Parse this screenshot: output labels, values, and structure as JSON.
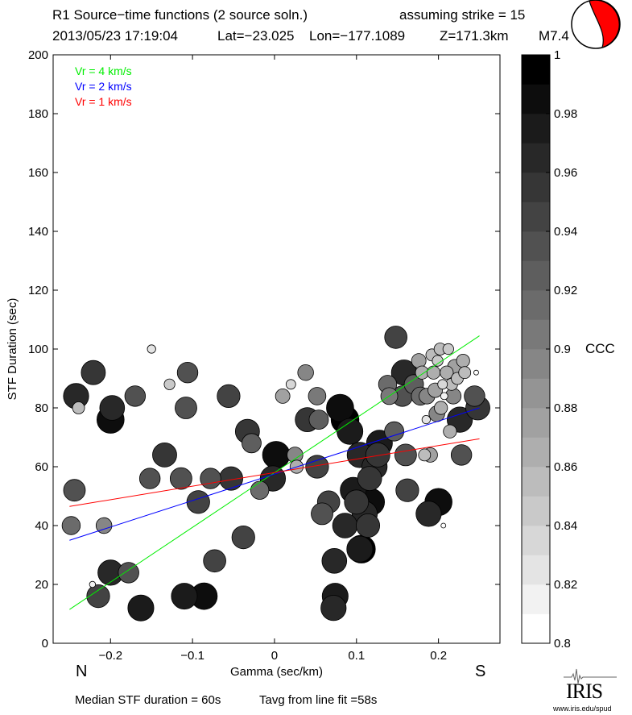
{
  "title": {
    "line1_left": "R1 Source−time functions (2 source soln.)",
    "line1_right": "assuming strike = 15",
    "line2_date": "2013/05/23 17:19:04",
    "line2_lat": "Lat=−23.025",
    "line2_lon": "Lon=−177.1089",
    "line2_depth": "Z=171.3km",
    "line2_mag": "M7.4"
  },
  "labels": {
    "north": "N",
    "south": "S",
    "colorbar_label": "CCC"
  },
  "footer": {
    "median": "Median STF duration = 60s",
    "tavg": "Tavg from line fit =58s"
  },
  "logo": {
    "name": "IRIS",
    "url": "www.iris.edu/spud"
  },
  "colors": {
    "vr4": "#00ee00",
    "vr2": "#0000ff",
    "vr1": "#ff0000",
    "beachball_fill": "#ff0000"
  },
  "chart_data": {
    "type": "scatter",
    "xlabel": "Gamma (sec/km)",
    "ylabel": "STF Duration (sec)",
    "xlim": [
      -0.27,
      0.275
    ],
    "ylim": [
      0,
      200
    ],
    "xticks": [
      -0.2,
      -0.1,
      0,
      0.1,
      0.2
    ],
    "xtick_labels": [
      "−0.2",
      "−0.1",
      "0",
      "0.1",
      "0.2"
    ],
    "yticks": [
      0,
      20,
      40,
      60,
      80,
      100,
      120,
      140,
      160,
      180,
      200
    ],
    "yticks_labels": [
      "0",
      "20",
      "40",
      "60",
      "80",
      "100",
      "120",
      "140",
      "160",
      "180",
      "200"
    ],
    "grid": false,
    "lines": [
      {
        "name": "Vr = 4 km/s",
        "color": "#00ee00",
        "x": [
          -0.25,
          0.25
        ],
        "y": [
          11.5,
          104.5
        ]
      },
      {
        "name": "Vr = 2 km/s",
        "color": "#0000ff",
        "x": [
          -0.25,
          0.25
        ],
        "y": [
          35,
          80
        ]
      },
      {
        "name": "Vr = 1 km/s",
        "color": "#ff0000",
        "x": [
          -0.25,
          0.25
        ],
        "y": [
          46.5,
          69.5
        ]
      }
    ],
    "colorbar": {
      "label": "CCC",
      "min": 0.8,
      "max": 1.0,
      "levels": 20,
      "ticks": [
        0.8,
        0.82,
        0.84,
        0.86,
        0.88,
        0.9,
        0.92,
        0.94,
        0.96,
        0.98,
        1.0
      ],
      "tick_labels": [
        "0.8",
        "0.82",
        "0.84",
        "0.86",
        "0.88",
        "0.9",
        "0.92",
        "0.94",
        "0.96",
        "0.98",
        "1"
      ]
    },
    "points": [
      {
        "x": -0.239,
        "y": 80,
        "ccc": 0.86
      },
      {
        "x": -0.242,
        "y": 84,
        "ccc": 0.97
      },
      {
        "x": -0.221,
        "y": 92,
        "ccc": 0.96
      },
      {
        "x": -0.2,
        "y": 76,
        "ccc": 0.985
      },
      {
        "x": -0.198,
        "y": 80,
        "ccc": 0.965
      },
      {
        "x": -0.17,
        "y": 84,
        "ccc": 0.93
      },
      {
        "x": -0.15,
        "y": 100,
        "ccc": 0.83
      },
      {
        "x": -0.128,
        "y": 88,
        "ccc": 0.85
      },
      {
        "x": -0.106,
        "y": 92,
        "ccc": 0.93
      },
      {
        "x": -0.108,
        "y": 80,
        "ccc": 0.94
      },
      {
        "x": -0.056,
        "y": 84,
        "ccc": 0.95
      },
      {
        "x": -0.244,
        "y": 52,
        "ccc": 0.94
      },
      {
        "x": -0.248,
        "y": 40,
        "ccc": 0.91
      },
      {
        "x": -0.208,
        "y": 40,
        "ccc": 0.89
      },
      {
        "x": -0.215,
        "y": 16,
        "ccc": 0.95
      },
      {
        "x": -0.2,
        "y": 24,
        "ccc": 0.97
      },
      {
        "x": -0.178,
        "y": 24,
        "ccc": 0.93
      },
      {
        "x": -0.222,
        "y": 20,
        "ccc": 0.81
      },
      {
        "x": -0.163,
        "y": 12,
        "ccc": 0.975
      },
      {
        "x": -0.152,
        "y": 56,
        "ccc": 0.93
      },
      {
        "x": -0.134,
        "y": 64,
        "ccc": 0.96
      },
      {
        "x": -0.114,
        "y": 56,
        "ccc": 0.94
      },
      {
        "x": -0.093,
        "y": 48,
        "ccc": 0.95
      },
      {
        "x": -0.078,
        "y": 56,
        "ccc": 0.93
      },
      {
        "x": -0.053,
        "y": 56,
        "ccc": 0.955
      },
      {
        "x": -0.033,
        "y": 72,
        "ccc": 0.96
      },
      {
        "x": -0.028,
        "y": 68,
        "ccc": 0.92
      },
      {
        "x": -0.038,
        "y": 36,
        "ccc": 0.95
      },
      {
        "x": -0.073,
        "y": 28,
        "ccc": 0.945
      },
      {
        "x": -0.11,
        "y": 16,
        "ccc": 0.975
      },
      {
        "x": -0.086,
        "y": 16,
        "ccc": 0.98
      },
      {
        "x": -0.018,
        "y": 52,
        "ccc": 0.91
      },
      {
        "x": -0.002,
        "y": 56,
        "ccc": 0.97
      },
      {
        "x": 0.002,
        "y": 64,
        "ccc": 0.985
      },
      {
        "x": 0.01,
        "y": 84,
        "ccc": 0.88
      },
      {
        "x": 0.02,
        "y": 88,
        "ccc": 0.84
      },
      {
        "x": 0.025,
        "y": 64,
        "ccc": 0.89
      },
      {
        "x": 0.027,
        "y": 60,
        "ccc": 0.87
      },
      {
        "x": 0.038,
        "y": 92,
        "ccc": 0.89
      },
      {
        "x": 0.04,
        "y": 76,
        "ccc": 0.96
      },
      {
        "x": 0.052,
        "y": 84,
        "ccc": 0.905
      },
      {
        "x": 0.054,
        "y": 76,
        "ccc": 0.92
      },
      {
        "x": 0.052,
        "y": 60,
        "ccc": 0.95
      },
      {
        "x": 0.058,
        "y": 44,
        "ccc": 0.94
      },
      {
        "x": 0.066,
        "y": 48,
        "ccc": 0.945
      },
      {
        "x": 0.073,
        "y": 28,
        "ccc": 0.965
      },
      {
        "x": 0.074,
        "y": 16,
        "ccc": 0.975
      },
      {
        "x": 0.072,
        "y": 12,
        "ccc": 0.97
      },
      {
        "x": 0.08,
        "y": 80,
        "ccc": 0.985
      },
      {
        "x": 0.086,
        "y": 76,
        "ccc": 0.99
      },
      {
        "x": 0.092,
        "y": 72,
        "ccc": 0.975
      },
      {
        "x": 0.086,
        "y": 40,
        "ccc": 0.965
      },
      {
        "x": 0.096,
        "y": 52,
        "ccc": 0.975
      },
      {
        "x": 0.1,
        "y": 48,
        "ccc": 0.96
      },
      {
        "x": 0.104,
        "y": 64,
        "ccc": 0.97
      },
      {
        "x": 0.104,
        "y": 32,
        "ccc": 0.975
      },
      {
        "x": 0.106,
        "y": 32,
        "ccc": 0.99
      },
      {
        "x": 0.11,
        "y": 44,
        "ccc": 0.97
      },
      {
        "x": 0.114,
        "y": 40,
        "ccc": 0.955
      },
      {
        "x": 0.118,
        "y": 48,
        "ccc": 0.98
      },
      {
        "x": 0.116,
        "y": 56,
        "ccc": 0.96
      },
      {
        "x": 0.122,
        "y": 60,
        "ccc": 0.97
      },
      {
        "x": 0.126,
        "y": 64,
        "ccc": 0.96
      },
      {
        "x": 0.128,
        "y": 68,
        "ccc": 0.975
      },
      {
        "x": 0.138,
        "y": 88,
        "ccc": 0.91
      },
      {
        "x": 0.148,
        "y": 104,
        "ccc": 0.945
      },
      {
        "x": 0.146,
        "y": 72,
        "ccc": 0.92
      },
      {
        "x": 0.14,
        "y": 84,
        "ccc": 0.9
      },
      {
        "x": 0.158,
        "y": 92,
        "ccc": 0.97
      },
      {
        "x": 0.156,
        "y": 84,
        "ccc": 0.93
      },
      {
        "x": 0.16,
        "y": 64,
        "ccc": 0.94
      },
      {
        "x": 0.162,
        "y": 52,
        "ccc": 0.95
      },
      {
        "x": 0.17,
        "y": 88,
        "ccc": 0.92
      },
      {
        "x": 0.176,
        "y": 96,
        "ccc": 0.88
      },
      {
        "x": 0.178,
        "y": 84,
        "ccc": 0.91
      },
      {
        "x": 0.18,
        "y": 92,
        "ccc": 0.87
      },
      {
        "x": 0.183,
        "y": 64,
        "ccc": 0.86
      },
      {
        "x": 0.185,
        "y": 76,
        "ccc": 0.83
      },
      {
        "x": 0.186,
        "y": 84,
        "ccc": 0.89
      },
      {
        "x": 0.188,
        "y": 44,
        "ccc": 0.97
      },
      {
        "x": 0.19,
        "y": 64,
        "ccc": 0.88
      },
      {
        "x": 0.192,
        "y": 98,
        "ccc": 0.86
      },
      {
        "x": 0.194,
        "y": 92,
        "ccc": 0.87
      },
      {
        "x": 0.196,
        "y": 86,
        "ccc": 0.88
      },
      {
        "x": 0.198,
        "y": 78,
        "ccc": 0.89
      },
      {
        "x": 0.199,
        "y": 96,
        "ccc": 0.85
      },
      {
        "x": 0.2,
        "y": 48,
        "ccc": 0.985
      },
      {
        "x": 0.202,
        "y": 100,
        "ccc": 0.86
      },
      {
        "x": 0.203,
        "y": 80,
        "ccc": 0.87
      },
      {
        "x": 0.205,
        "y": 88,
        "ccc": 0.84
      },
      {
        "x": 0.206,
        "y": 40,
        "ccc": 0.8
      },
      {
        "x": 0.207,
        "y": 84,
        "ccc": 0.82
      },
      {
        "x": 0.21,
        "y": 92,
        "ccc": 0.87
      },
      {
        "x": 0.212,
        "y": 100,
        "ccc": 0.85
      },
      {
        "x": 0.214,
        "y": 72,
        "ccc": 0.87
      },
      {
        "x": 0.216,
        "y": 88,
        "ccc": 0.86
      },
      {
        "x": 0.218,
        "y": 84,
        "ccc": 0.89
      },
      {
        "x": 0.22,
        "y": 94,
        "ccc": 0.88
      },
      {
        "x": 0.223,
        "y": 90,
        "ccc": 0.86
      },
      {
        "x": 0.226,
        "y": 76,
        "ccc": 0.97
      },
      {
        "x": 0.228,
        "y": 64,
        "ccc": 0.93
      },
      {
        "x": 0.23,
        "y": 96,
        "ccc": 0.87
      },
      {
        "x": 0.232,
        "y": 92,
        "ccc": 0.86
      },
      {
        "x": 0.244,
        "y": 84,
        "ccc": 0.93
      },
      {
        "x": 0.246,
        "y": 92,
        "ccc": 0.8
      },
      {
        "x": 0.248,
        "y": 80,
        "ccc": 0.96
      }
    ]
  }
}
